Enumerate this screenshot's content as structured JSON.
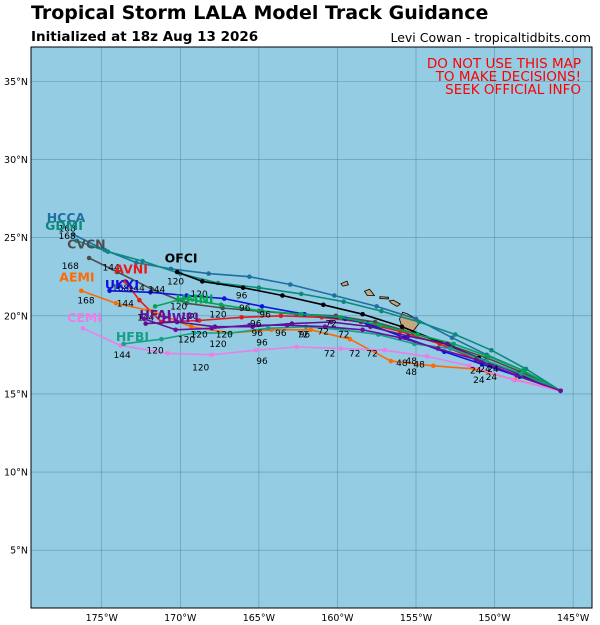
{
  "title": "Tropical Storm LALA Model Track Guidance",
  "subtitle": "Initialized at 18z Aug 13 2026",
  "credit": "Levi Cowan - tropicaltidbits.com",
  "warning": [
    "DO NOT USE THIS MAP",
    "TO MAKE DECISIONS!",
    "SEEK OFFICIAL INFO"
  ],
  "colors": {
    "ocean": "#94cde3",
    "land": "#c9a77c",
    "grid": "#4a7d99",
    "warning": "#ff0000"
  },
  "map_extent": {
    "lon": [
      -179.5,
      -143.8
    ],
    "lat": [
      1.3,
      37.2
    ]
  },
  "axes": {
    "lon_ticks": [
      -175,
      -170,
      -165,
      -160,
      -155,
      -150,
      -145
    ],
    "lon_labels": [
      "175°W",
      "170°W",
      "165°W",
      "160°W",
      "155°W",
      "150°W",
      "145°W"
    ],
    "lat_ticks": [
      5,
      10,
      15,
      20,
      25,
      30,
      35
    ],
    "lat_labels": [
      "5°N",
      "10°N",
      "15°N",
      "20°N",
      "25°N",
      "30°N",
      "35°N"
    ]
  },
  "land": [
    {
      "name": "Hawaii (Big Island)",
      "polygon": [
        [
          -155.85,
          20.22
        ],
        [
          -155.55,
          20.12
        ],
        [
          -155.08,
          19.85
        ],
        [
          -154.8,
          19.52
        ],
        [
          -155.2,
          19.0
        ],
        [
          -155.68,
          18.92
        ],
        [
          -155.95,
          19.45
        ],
        [
          -156.05,
          19.78
        ]
      ]
    },
    {
      "name": "Maui",
      "polygon": [
        [
          -156.7,
          20.95
        ],
        [
          -156.45,
          21.0
        ],
        [
          -156.0,
          20.75
        ],
        [
          -156.2,
          20.6
        ],
        [
          -156.55,
          20.8
        ]
      ]
    },
    {
      "name": "Molokai",
      "polygon": [
        [
          -157.3,
          21.22
        ],
        [
          -156.75,
          21.18
        ],
        [
          -156.75,
          21.08
        ],
        [
          -157.3,
          21.1
        ]
      ]
    },
    {
      "name": "Oahu",
      "polygon": [
        [
          -158.28,
          21.57
        ],
        [
          -157.95,
          21.7
        ],
        [
          -157.65,
          21.3
        ],
        [
          -158.1,
          21.3
        ]
      ]
    },
    {
      "name": "Kauai",
      "polygon": [
        [
          -159.78,
          22.05
        ],
        [
          -159.4,
          22.22
        ],
        [
          -159.3,
          21.98
        ],
        [
          -159.65,
          21.9
        ]
      ]
    }
  ],
  "tracks": [
    {
      "model": "HCCA",
      "color": "#1f6fa1",
      "points": [
        [
          -145.8,
          15.2
        ],
        [
          -148.2,
          16.5
        ],
        [
          -150.5,
          17.5
        ],
        [
          -152.7,
          18.6
        ],
        [
          -155,
          19.8
        ],
        [
          -157.5,
          20.6
        ],
        [
          -160.2,
          21.3
        ],
        [
          -163,
          22
        ],
        [
          -165.6,
          22.5
        ],
        [
          -168.2,
          22.7
        ],
        [
          -170.6,
          23
        ],
        [
          -172.8,
          23.4
        ],
        [
          -174.8,
          24.2
        ],
        [
          -176.8,
          25.2
        ]
      ],
      "labels": [
        {
          "text": "168",
          "at": [
            -177.2,
            25.4
          ]
        }
      ]
    },
    {
      "model": "GDMI",
      "color": "#0b8a7c",
      "points": [
        [
          -145.8,
          15.2
        ],
        [
          -148,
          16.6
        ],
        [
          -150.2,
          17.8
        ],
        [
          -152.5,
          18.8
        ],
        [
          -154.8,
          19.6
        ],
        [
          -157.2,
          20.3
        ],
        [
          -159.6,
          20.9
        ],
        [
          -162.3,
          21.4
        ],
        [
          -165,
          21.8
        ],
        [
          -167.6,
          22.1
        ],
        [
          -170,
          22.7
        ],
        [
          -172.4,
          23.5
        ],
        [
          -174.6,
          24.1
        ],
        [
          -176.6,
          24.8
        ]
      ],
      "labels": [
        {
          "text": "168",
          "at": [
            -177.2,
            24.9
          ]
        }
      ]
    },
    {
      "model": "CVCN",
      "color": "#4d4d4d",
      "points": [
        [
          -145.8,
          15.2
        ],
        [
          -148.3,
          16.4
        ],
        [
          -150.5,
          17.3
        ],
        [
          -152.8,
          18.1
        ],
        [
          -155.2,
          18.9
        ],
        [
          -157.6,
          19.6
        ],
        [
          -160.1,
          20
        ],
        [
          -162.6,
          20.1
        ],
        [
          -165,
          20.3
        ],
        [
          -167.3,
          20.5
        ],
        [
          -169.6,
          20.8
        ],
        [
          -171.8,
          21.7
        ],
        [
          -174,
          22.8
        ],
        [
          -175.8,
          23.7
        ]
      ],
      "labels": [
        {
          "text": "168",
          "at": [
            -177,
            23
          ]
        },
        {
          "text": "144",
          "at": [
            -174.4,
            22.9
          ]
        }
      ]
    },
    {
      "model": "OFCI",
      "color": "#000000",
      "points": [
        [
          -145.8,
          15.2
        ],
        [
          -148.5,
          16.3
        ],
        [
          -151,
          17.3
        ],
        [
          -153.4,
          18.3
        ],
        [
          -155.9,
          19.3
        ],
        [
          -158.4,
          20.1
        ],
        [
          -160.9,
          20.7
        ],
        [
          -163.5,
          21.3
        ],
        [
          -166,
          21.8
        ],
        [
          -168.6,
          22.2
        ],
        [
          -170.2,
          22.8
        ]
      ],
      "labels": [
        {
          "text": "120",
          "at": [
            -170.3,
            22
          ]
        }
      ]
    },
    {
      "model": "AVNI",
      "color": "#e41a1c",
      "points": [
        [
          -145.8,
          15.2
        ],
        [
          -148.6,
          16.2
        ],
        [
          -151,
          17.1
        ],
        [
          -153.5,
          18.2
        ],
        [
          -156,
          19
        ],
        [
          -158.5,
          19.6
        ],
        [
          -161,
          19.9
        ],
        [
          -163.6,
          20
        ],
        [
          -166.1,
          19.9
        ],
        [
          -168.8,
          19.7
        ],
        [
          -171.2,
          19.6
        ],
        [
          -172.6,
          21
        ],
        [
          -173.5,
          22.2
        ]
      ],
      "labels": [
        {
          "text": "168",
          "at": [
            -173.8,
            21.6
          ]
        },
        {
          "text": "144",
          "at": [
            -172.8,
            21.6
          ]
        }
      ]
    },
    {
      "model": "UKXI",
      "color": "#1010e0",
      "points": [
        [
          -145.8,
          15.2
        ],
        [
          -148.4,
          16.1
        ],
        [
          -150.8,
          16.9
        ],
        [
          -153.2,
          17.7
        ],
        [
          -155.7,
          18.6
        ],
        [
          -158.1,
          19.5
        ],
        [
          -159.5,
          19.8
        ],
        [
          -162.1,
          20.1
        ],
        [
          -164.8,
          20.6
        ],
        [
          -167.2,
          21.1
        ],
        [
          -169.6,
          21.3
        ],
        [
          -171.9,
          21.5
        ],
        [
          -174.5,
          21.6
        ]
      ],
      "labels": [
        {
          "text": "144",
          "at": [
            -171.5,
            21.5
          ]
        }
      ]
    },
    {
      "model": "AEMI",
      "color": "#ff6a00",
      "points": [
        [
          -145.8,
          15.2
        ],
        [
          -148.7,
          15.9
        ],
        [
          -151.3,
          16.6
        ],
        [
          -153.9,
          16.8
        ],
        [
          -156.6,
          17.1
        ],
        [
          -159.2,
          18.5
        ],
        [
          -161.7,
          19.1
        ],
        [
          -164.2,
          19.1
        ],
        [
          -166.8,
          18.9
        ],
        [
          -169.3,
          19.3
        ],
        [
          -171.8,
          20.3
        ],
        [
          -174.1,
          20.8
        ],
        [
          -176.3,
          21.6
        ]
      ],
      "labels": [
        {
          "text": "168",
          "at": [
            -176,
            20.8
          ]
        },
        {
          "text": "144",
          "at": [
            -173.5,
            20.6
          ]
        }
      ]
    },
    {
      "model": "HMNI",
      "color": "#00a650",
      "points": [
        [
          -145.8,
          15.2
        ],
        [
          -148.2,
          16.5
        ],
        [
          -150.4,
          17.4
        ],
        [
          -152.6,
          18.2
        ],
        [
          -154.9,
          18.8
        ],
        [
          -157.3,
          19.4
        ],
        [
          -159.8,
          19.9
        ],
        [
          -162.3,
          20.1
        ],
        [
          -164.8,
          20.3
        ],
        [
          -167.4,
          20.7
        ],
        [
          -169.8,
          21.1
        ],
        [
          -171.6,
          20.6
        ]
      ],
      "labels": [
        {
          "text": "120",
          "at": [
            -168.8,
            21.2
          ]
        }
      ]
    },
    {
      "model": "HFAI",
      "color": "#5a1290",
      "points": [
        [
          -145.8,
          15.2
        ],
        [
          -148.4,
          16.3
        ],
        [
          -150.7,
          17.1
        ],
        [
          -153,
          18.2
        ],
        [
          -155.5,
          18.7
        ],
        [
          -157.9,
          19.3
        ],
        [
          -160.4,
          19.6
        ],
        [
          -162.9,
          19.5
        ],
        [
          -165.4,
          19.3
        ],
        [
          -167.8,
          19.3
        ],
        [
          -170.2,
          19.6
        ],
        [
          -172.2,
          19.5
        ]
      ],
      "labels": [
        {
          "text": "144",
          "at": [
            -172.2,
            19.7
          ]
        }
      ]
    },
    {
      "model": "CEMI",
      "color": "#ee7de8",
      "points": [
        [
          -145.8,
          15.2
        ],
        [
          -148.8,
          15.9
        ],
        [
          -151.6,
          16.8
        ],
        [
          -154.3,
          17.4
        ],
        [
          -157,
          17.8
        ],
        [
          -159.8,
          17.9
        ],
        [
          -162.6,
          18
        ],
        [
          -165.2,
          17.8
        ],
        [
          -168,
          17.5
        ],
        [
          -170.8,
          17.6
        ],
        [
          -173.8,
          18.1
        ],
        [
          -176.2,
          19.2
        ]
      ],
      "labels": [
        {
          "text": "120",
          "at": [
            -168.7,
            16.5
          ]
        },
        {
          "text": "96",
          "at": [
            -164.8,
            16.9
          ]
        }
      ]
    },
    {
      "model": "HFBI",
      "color": "#16a085",
      "points": [
        [
          -145.8,
          15.2
        ],
        [
          -148.3,
          16.3
        ],
        [
          -150.5,
          17.1
        ],
        [
          -152.8,
          17.9
        ],
        [
          -155.1,
          18.2
        ],
        [
          -157.4,
          18.8
        ],
        [
          -159.7,
          19.1
        ],
        [
          -162,
          19.3
        ],
        [
          -164.4,
          19.2
        ],
        [
          -166.8,
          18.9
        ],
        [
          -169.1,
          18.9
        ],
        [
          -171.2,
          18.5
        ],
        [
          -173.6,
          18.2
        ]
      ],
      "labels": [
        {
          "text": "144",
          "at": [
            -173.7,
            17.3
          ]
        },
        {
          "text": "120",
          "at": [
            -171.6,
            17.6
          ]
        }
      ]
    },
    {
      "model": "HWFI",
      "color": "#6a0fa0",
      "points": [
        [
          -145.8,
          15.2
        ],
        [
          -148.6,
          16.2
        ],
        [
          -151.2,
          17.2
        ],
        [
          -153.6,
          17.9
        ],
        [
          -156,
          18.6
        ],
        [
          -158.4,
          19.1
        ],
        [
          -160.8,
          19.3
        ],
        [
          -163.2,
          19.4
        ],
        [
          -165.6,
          19.4
        ],
        [
          -168,
          19.2
        ],
        [
          -170.3,
          19.1
        ],
        [
          -172.3,
          19.8
        ]
      ],
      "labels": [
        {
          "text": "120",
          "at": [
            -169.6,
            18.3
          ]
        }
      ]
    }
  ],
  "hour_labels": [
    {
      "text": "24",
      "at": [
        -151.2,
        16.3
      ]
    },
    {
      "text": "24",
      "at": [
        -150.6,
        16.4
      ]
    },
    {
      "text": "24",
      "at": [
        -150.1,
        16.4
      ]
    },
    {
      "text": "24",
      "at": [
        -150.2,
        15.9
      ]
    },
    {
      "text": "24",
      "at": [
        -151,
        15.7
      ]
    },
    {
      "text": "48",
      "at": [
        -155.9,
        16.8
      ]
    },
    {
      "text": "48",
      "at": [
        -155.3,
        16.9
      ]
    },
    {
      "text": "48",
      "at": [
        -154.8,
        16.7
      ]
    },
    {
      "text": "48",
      "at": [
        -155.3,
        16.2
      ]
    },
    {
      "text": "72",
      "at": [
        -162.2,
        18.6
      ]
    },
    {
      "text": "72",
      "at": [
        -160.9,
        18.8
      ]
    },
    {
      "text": "72",
      "at": [
        -160.4,
        19.3
      ]
    },
    {
      "text": "72",
      "at": [
        -159.6,
        18.6
      ]
    },
    {
      "text": "72",
      "at": [
        -160.5,
        17.4
      ]
    },
    {
      "text": "72",
      "at": [
        -158.9,
        17.4
      ]
    },
    {
      "text": "72",
      "at": [
        -157.8,
        17.4
      ]
    },
    {
      "text": "96",
      "at": [
        -166.1,
        21.1
      ]
    },
    {
      "text": "96",
      "at": [
        -165.9,
        20.3
      ]
    },
    {
      "text": "96",
      "at": [
        -164.6,
        19.9
      ]
    },
    {
      "text": "96",
      "at": [
        -165.2,
        19.3
      ]
    },
    {
      "text": "96",
      "at": [
        -165.1,
        18.7
      ]
    },
    {
      "text": "96",
      "at": [
        -163.6,
        18.7
      ]
    },
    {
      "text": "96",
      "at": [
        -162.1,
        18.6
      ]
    },
    {
      "text": "96",
      "at": [
        -164.8,
        18.1
      ]
    },
    {
      "text": "120",
      "at": [
        -170.1,
        20.4
      ]
    },
    {
      "text": "120",
      "at": [
        -169.4,
        19.8
      ]
    },
    {
      "text": "120",
      "at": [
        -167.6,
        19.9
      ]
    },
    {
      "text": "120",
      "at": [
        -168.8,
        18.6
      ]
    },
    {
      "text": "120",
      "at": [
        -167.2,
        18.6
      ]
    },
    {
      "text": "120",
      "at": [
        -167.6,
        18
      ]
    }
  ],
  "model_labels": [
    {
      "text": "HCCA",
      "color": "#1f6fa1",
      "at": [
        -178.5,
        26
      ]
    },
    {
      "text": "GDMI",
      "color": "#0b8a7c",
      "at": [
        -178.6,
        25.5
      ]
    },
    {
      "text": "CVCN",
      "color": "#4d4d4d",
      "at": [
        -177.2,
        24.3
      ]
    },
    {
      "text": "OFCI",
      "color": "#000000",
      "at": [
        -171,
        23.4
      ]
    },
    {
      "text": "AVNI",
      "color": "#e41a1c",
      "at": [
        -174.2,
        22.7
      ]
    },
    {
      "text": "AEMI",
      "color": "#ff6a00",
      "at": [
        -177.7,
        22.2
      ]
    },
    {
      "text": "UKXI",
      "color": "#1010e0",
      "at": [
        -174.8,
        21.7
      ]
    },
    {
      "text": "HMNI",
      "color": "#00a650",
      "at": [
        -170.3,
        20.8
      ]
    },
    {
      "text": "HFAI",
      "color": "#5a1290",
      "at": [
        -172.6,
        19.8
      ]
    },
    {
      "text": "HWFI",
      "color": "#6a0fa0",
      "at": [
        -171.2,
        19.6
      ]
    },
    {
      "text": "CEMI",
      "color": "#ee7de8",
      "at": [
        -177.2,
        19.6
      ]
    },
    {
      "text": "HFBI",
      "color": "#16a085",
      "at": [
        -174.1,
        18.4
      ]
    }
  ]
}
